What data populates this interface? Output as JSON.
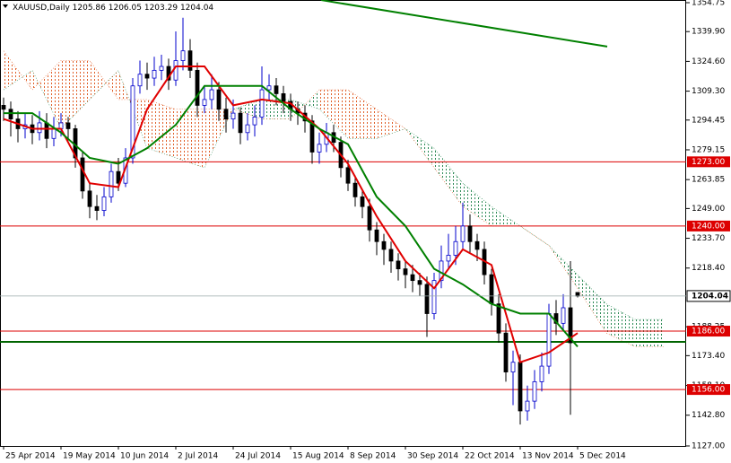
{
  "chart_data": {
    "type": "candlestick",
    "header": "XAUUSD,Daily",
    "bull_color": "#0000cc",
    "bear_color": "#000000",
    "x": [
      0,
      2,
      4,
      6,
      8,
      10,
      12,
      14,
      16,
      18,
      20,
      22,
      24,
      26,
      28,
      30,
      32,
      34,
      36,
      38,
      40,
      42,
      44,
      46,
      48,
      50,
      52,
      54,
      56,
      58,
      60,
      62,
      64,
      66,
      68,
      70,
      72,
      74,
      76,
      78,
      80,
      82,
      84,
      86,
      88,
      90,
      92,
      94,
      96,
      98,
      100,
      102,
      104,
      106,
      108,
      110,
      112,
      114,
      116,
      118,
      120,
      122,
      124,
      126,
      128,
      130,
      132,
      134,
      136,
      138,
      140,
      142,
      144,
      146,
      148,
      150,
      152,
      154,
      156,
      158,
      160
    ],
    "open": [
      1302,
      1300,
      1295,
      1290,
      1292,
      1288,
      1293,
      1285,
      1290,
      1293,
      1290,
      1275,
      1258,
      1250,
      1248,
      1255,
      1268,
      1262,
      1275,
      1312,
      1318,
      1316,
      1320,
      1322,
      1315,
      1325,
      1330,
      1320,
      1302,
      1305,
      1310,
      1300,
      1295,
      1298,
      1288,
      1292,
      1296,
      1310,
      1312,
      1308,
      1304,
      1300,
      1298,
      1294,
      1278,
      1282,
      1288,
      1283,
      1270,
      1262,
      1255,
      1250,
      1238,
      1232,
      1228,
      1222,
      1218,
      1215,
      1212,
      1210,
      1195,
      1212,
      1222,
      1225,
      1232,
      1240,
      1232,
      1228,
      1215,
      1200,
      1185,
      1165,
      1170,
      1145,
      1150,
      1160,
      1168,
      1195,
      1190,
      1198,
      1205.86
    ],
    "high": [
      1306,
      1304,
      1299,
      1298,
      1297,
      1299,
      1298,
      1296,
      1298,
      1296,
      1292,
      1278,
      1262,
      1256,
      1260,
      1272,
      1275,
      1280,
      1316,
      1325,
      1324,
      1327,
      1328,
      1326,
      1340,
      1347,
      1336,
      1324,
      1312,
      1318,
      1314,
      1306,
      1305,
      1301,
      1298,
      1302,
      1322,
      1318,
      1316,
      1312,
      1308,
      1304,
      1302,
      1297,
      1288,
      1293,
      1292,
      1286,
      1274,
      1266,
      1259,
      1254,
      1242,
      1236,
      1232,
      1226,
      1222,
      1220,
      1216,
      1214,
      1216,
      1230,
      1236,
      1240,
      1252,
      1246,
      1236,
      1232,
      1218,
      1205,
      1190,
      1176,
      1174,
      1158,
      1166,
      1175,
      1200,
      1202,
      1205,
      1222,
      1206.05
    ],
    "low": [
      1294,
      1286,
      1283,
      1285,
      1282,
      1284,
      1280,
      1281,
      1286,
      1284,
      1270,
      1254,
      1244,
      1243,
      1245,
      1252,
      1258,
      1260,
      1272,
      1308,
      1310,
      1312,
      1315,
      1310,
      1312,
      1320,
      1316,
      1296,
      1298,
      1300,
      1294,
      1288,
      1290,
      1282,
      1284,
      1286,
      1292,
      1305,
      1302,
      1298,
      1294,
      1292,
      1288,
      1272,
      1272,
      1278,
      1278,
      1265,
      1258,
      1250,
      1244,
      1232,
      1225,
      1220,
      1216,
      1212,
      1208,
      1206,
      1204,
      1183,
      1192,
      1208,
      1218,
      1220,
      1228,
      1226,
      1222,
      1210,
      1194,
      1180,
      1160,
      1148,
      1138,
      1140,
      1146,
      1155,
      1164,
      1184,
      1186,
      1143,
      1203.29
    ],
    "close": [
      1300,
      1295,
      1290,
      1292,
      1288,
      1293,
      1285,
      1290,
      1293,
      1290,
      1275,
      1258,
      1250,
      1248,
      1255,
      1268,
      1262,
      1275,
      1312,
      1318,
      1316,
      1320,
      1322,
      1315,
      1325,
      1330,
      1320,
      1302,
      1305,
      1310,
      1300,
      1295,
      1298,
      1288,
      1292,
      1296,
      1310,
      1312,
      1308,
      1304,
      1300,
      1298,
      1294,
      1278,
      1282,
      1288,
      1283,
      1270,
      1262,
      1255,
      1250,
      1238,
      1232,
      1228,
      1222,
      1218,
      1215,
      1212,
      1210,
      1195,
      1212,
      1222,
      1225,
      1232,
      1240,
      1232,
      1228,
      1215,
      1200,
      1185,
      1165,
      1170,
      1145,
      1150,
      1160,
      1168,
      1195,
      1190,
      1198,
      1180,
      1204.04
    ],
    "tenkan": {
      "color": "#e00000",
      "x": [
        0,
        8,
        16,
        24,
        32,
        40,
        48,
        56,
        64,
        72,
        80,
        88,
        96,
        104,
        112,
        120,
        128,
        136,
        144,
        152,
        160
      ],
      "values": [
        1295,
        1290,
        1290,
        1262,
        1260,
        1300,
        1322,
        1322,
        1302,
        1305,
        1303,
        1290,
        1272,
        1245,
        1222,
        1208,
        1228,
        1220,
        1170,
        1175,
        1185
      ]
    },
    "kijun": {
      "color": "#008000",
      "x": [
        0,
        8,
        16,
        24,
        32,
        40,
        48,
        56,
        64,
        72,
        80,
        88,
        96,
        104,
        112,
        120,
        128,
        136,
        144,
        152,
        160
      ],
      "values": [
        1298,
        1298,
        1288,
        1275,
        1272,
        1280,
        1292,
        1312,
        1312,
        1312,
        1300,
        1290,
        1282,
        1255,
        1240,
        1218,
        1210,
        1200,
        1195,
        1195,
        1178
      ]
    },
    "cloud": {
      "x": [
        0,
        8,
        16,
        24,
        32,
        40,
        48,
        56,
        64,
        72,
        80,
        88,
        96,
        104,
        112,
        120,
        128,
        136,
        144,
        152,
        160,
        168,
        176,
        184
      ],
      "span_a": [
        1310,
        1320,
        1290,
        1305,
        1320,
        1280,
        1275,
        1270,
        1300,
        1305,
        1305,
        1300,
        1285,
        1285,
        1290,
        1280,
        1262,
        1250,
        1240,
        1230,
        1215,
        1200,
        1192,
        1192
      ],
      "span_b": [
        1330,
        1310,
        1325,
        1325,
        1305,
        1305,
        1300,
        1300,
        1300,
        1295,
        1295,
        1310,
        1310,
        1300,
        1290,
        1270,
        1250,
        1240,
        1240,
        1230,
        1208,
        1185,
        1178,
        1178
      ],
      "up_color": "#2e8b57",
      "down_color": "#e0602a"
    },
    "levels": [
      {
        "value": 1273,
        "label": "1273.00",
        "color": "#dd0000"
      },
      {
        "value": 1240,
        "label": "1240.00",
        "color": "#dd0000"
      },
      {
        "value": 1186,
        "label": "1186.00",
        "color": "#dd0000"
      },
      {
        "value": 1156,
        "label": "1156.00",
        "color": "#dd0000"
      }
    ],
    "support": {
      "value": 1180.5,
      "color": "#006400"
    },
    "trendline": {
      "x": [
        88.5,
        168.25
      ],
      "values": [
        1356.1,
        1332.2
      ],
      "color": "#008000"
    },
    "xlim": [
      -1,
      190.25
    ],
    "ylim": [
      1127,
      1354.75
    ],
    "yticks": [
      1354.75,
      {
        "value": 1339.9,
        "label": "1339.90"
      },
      {
        "value": 1324.6,
        "label": "1324.60"
      },
      {
        "value": 1309.3,
        "label": "1309.30"
      },
      {
        "value": 1294.45,
        "label": "1294.45"
      },
      {
        "value": 1279.15,
        "label": "1279.15"
      },
      {
        "value": 1263.85,
        "label": "1263.85"
      },
      {
        "value": 1249,
        "label": "1249.00"
      },
      {
        "value": 1233.7,
        "label": "1233.70"
      },
      {
        "value": 1218.4,
        "label": "1218.40"
      },
      {
        "value": 1188.25,
        "label": "1188.25"
      },
      {
        "value": 1173.4,
        "label": "1173.40"
      },
      {
        "value": 1158.1,
        "label": "1158.10"
      },
      {
        "value": 1142.8,
        "label": "1142.80"
      },
      {
        "value": 1127,
        "label": "1127.00"
      }
    ],
    "xticks": [
      {
        "value": 0,
        "label": "25 Apr 2014"
      },
      {
        "value": 16,
        "label": "19 May 2014"
      },
      {
        "value": 32,
        "label": "10 Jun 2014"
      },
      {
        "value": 48,
        "label": "2 Jul 2014"
      },
      {
        "value": 64,
        "label": "24 Jul 2014"
      },
      {
        "value": 80,
        "label": "15 Aug 2014"
      },
      {
        "value": 96,
        "label": "8 Sep 2014"
      },
      {
        "value": 112,
        "label": "30 Sep 2014"
      },
      {
        "value": 128,
        "label": "22 Oct 2014"
      },
      {
        "value": 144,
        "label": "13 Nov 2014"
      },
      {
        "value": 160,
        "label": "5 Dec 2014"
      }
    ]
  }
}
